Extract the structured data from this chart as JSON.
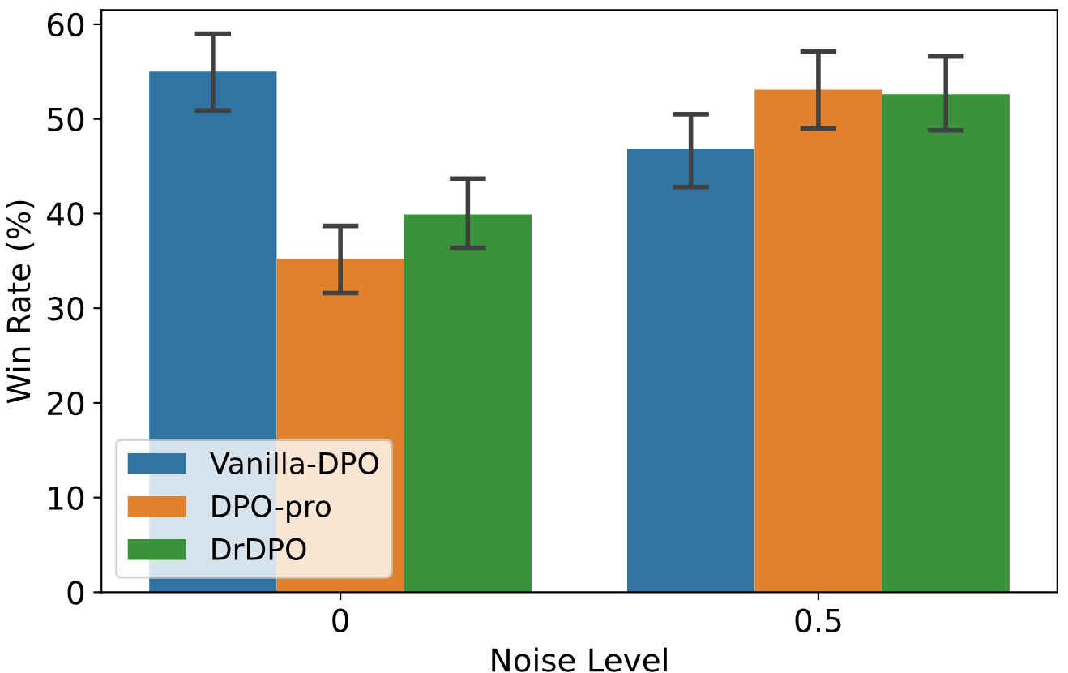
{
  "chart_data": {
    "type": "bar",
    "xlabel": "Noise Level",
    "ylabel": "Win Rate (%)",
    "categories": [
      "0",
      "0.5"
    ],
    "series": [
      {
        "name": "Vanilla-DPO",
        "color": "#3274a1",
        "values": [
          55.0,
          46.8
        ],
        "errors": [
          [
            50.9,
            59.0
          ],
          [
            42.8,
            50.5
          ]
        ]
      },
      {
        "name": "DPO-pro",
        "color": "#e1812c",
        "values": [
          35.2,
          53.1
        ],
        "errors": [
          [
            31.6,
            38.7
          ],
          [
            49.0,
            57.1
          ]
        ]
      },
      {
        "name": "DrDPO",
        "color": "#3a923a",
        "values": [
          39.9,
          52.6
        ],
        "errors": [
          [
            36.4,
            43.7
          ],
          [
            48.8,
            56.6
          ]
        ]
      }
    ],
    "ylim": [
      0,
      61.5
    ],
    "yticks": [
      0,
      10,
      20,
      30,
      40,
      50,
      60
    ],
    "grid": false,
    "legend": "bottom left"
  }
}
